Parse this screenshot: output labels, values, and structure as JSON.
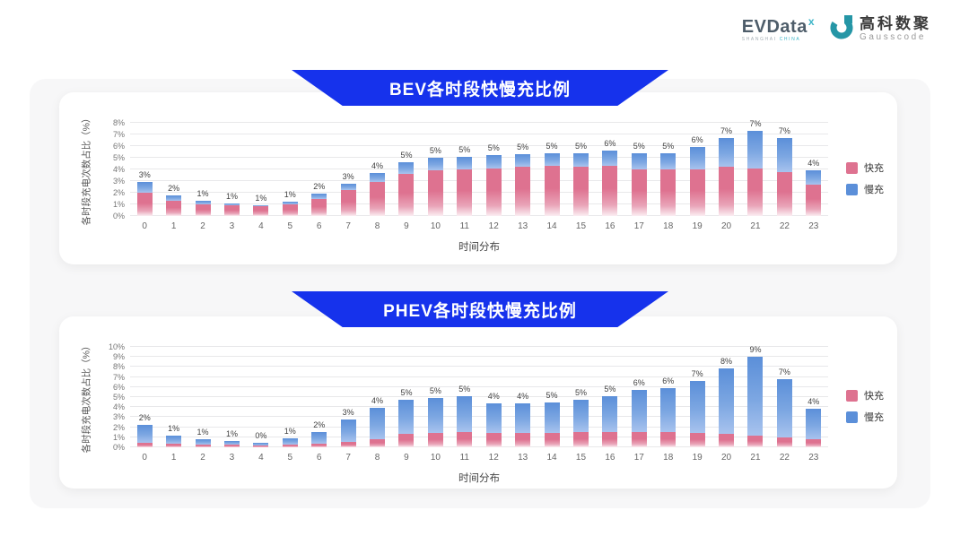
{
  "header": {
    "evdata": {
      "name": "EVData",
      "sup": "x",
      "tagline_left": "SHANGHAI",
      "tagline_right": "CHINA"
    },
    "gausscode": {
      "cn": "高科数聚",
      "en": "Gausscode"
    }
  },
  "colors": {
    "fast": "#de7290",
    "slow": "#5b8fd9",
    "banner_blue": "#1632ec",
    "teal": "#2596a6"
  },
  "chart_data": [
    {
      "type": "bar",
      "stacked": true,
      "title": "BEV各时段快慢充比例",
      "xlabel": "时间分布",
      "ylabel": "各时段充电次数占比（%）",
      "ymax": 8,
      "yticks": [
        "0%",
        "1%",
        "2%",
        "3%",
        "4%",
        "5%",
        "6%",
        "7%",
        "8%"
      ],
      "grid": true,
      "legend_position": "right",
      "legend": [
        {
          "name": "快充",
          "color": "#de7290"
        },
        {
          "name": "慢充",
          "color": "#5b8fd9"
        }
      ],
      "categories": [
        "0",
        "1",
        "2",
        "3",
        "4",
        "5",
        "6",
        "7",
        "8",
        "9",
        "10",
        "11",
        "12",
        "13",
        "14",
        "15",
        "16",
        "17",
        "18",
        "19",
        "20",
        "21",
        "22",
        "23"
      ],
      "bar_labels": [
        "3%",
        "2%",
        "1%",
        "1%",
        "1%",
        "1%",
        "2%",
        "3%",
        "4%",
        "5%",
        "5%",
        "5%",
        "5%",
        "5%",
        "5%",
        "5%",
        "6%",
        "5%",
        "5%",
        "6%",
        "7%",
        "7%",
        "7%",
        "4%"
      ],
      "series": [
        {
          "name": "快充",
          "values": [
            2.0,
            1.3,
            1.0,
            0.9,
            0.85,
            1.0,
            1.5,
            2.2,
            2.9,
            3.6,
            3.9,
            4.0,
            4.1,
            4.2,
            4.3,
            4.2,
            4.3,
            4.0,
            4.0,
            4.0,
            4.2,
            4.1,
            3.8,
            2.7
          ]
        },
        {
          "name": "慢充",
          "values": [
            0.9,
            0.5,
            0.3,
            0.2,
            0.1,
            0.2,
            0.4,
            0.6,
            0.8,
            1.0,
            1.1,
            1.1,
            1.1,
            1.1,
            1.1,
            1.2,
            1.3,
            1.4,
            1.4,
            1.9,
            2.5,
            3.2,
            2.9,
            1.2
          ]
        }
      ]
    },
    {
      "type": "bar",
      "stacked": true,
      "title": "PHEV各时段快慢充比例",
      "xlabel": "时间分布",
      "ylabel": "各时段充电次数占比（%）",
      "ymax": 10,
      "yticks": [
        "0%",
        "1%",
        "2%",
        "3%",
        "4%",
        "5%",
        "6%",
        "7%",
        "8%",
        "9%",
        "10%"
      ],
      "grid": true,
      "legend_position": "right",
      "legend": [
        {
          "name": "快充",
          "color": "#de7290"
        },
        {
          "name": "慢充",
          "color": "#5b8fd9"
        }
      ],
      "categories": [
        "0",
        "1",
        "2",
        "3",
        "4",
        "5",
        "6",
        "7",
        "8",
        "9",
        "10",
        "11",
        "12",
        "13",
        "14",
        "15",
        "16",
        "17",
        "18",
        "19",
        "20",
        "21",
        "22",
        "23"
      ],
      "bar_labels": [
        "2%",
        "1%",
        "1%",
        "1%",
        "0%",
        "1%",
        "2%",
        "3%",
        "4%",
        "5%",
        "5%",
        "5%",
        "4%",
        "4%",
        "5%",
        "5%",
        "5%",
        "6%",
        "6%",
        "7%",
        "8%",
        "9%",
        "7%",
        "4%"
      ],
      "series": [
        {
          "name": "快充",
          "values": [
            0.45,
            0.35,
            0.3,
            0.28,
            0.2,
            0.3,
            0.4,
            0.5,
            0.8,
            1.3,
            1.4,
            1.5,
            1.4,
            1.4,
            1.4,
            1.5,
            1.5,
            1.5,
            1.5,
            1.4,
            1.3,
            1.2,
            1.0,
            0.8
          ]
        },
        {
          "name": "慢充",
          "values": [
            1.75,
            0.85,
            0.5,
            0.35,
            0.28,
            0.55,
            1.1,
            2.3,
            3.1,
            3.4,
            3.5,
            3.6,
            3.0,
            3.0,
            3.1,
            3.2,
            3.6,
            4.2,
            4.4,
            5.2,
            6.6,
            7.8,
            5.8,
            3.0
          ]
        }
      ]
    }
  ]
}
